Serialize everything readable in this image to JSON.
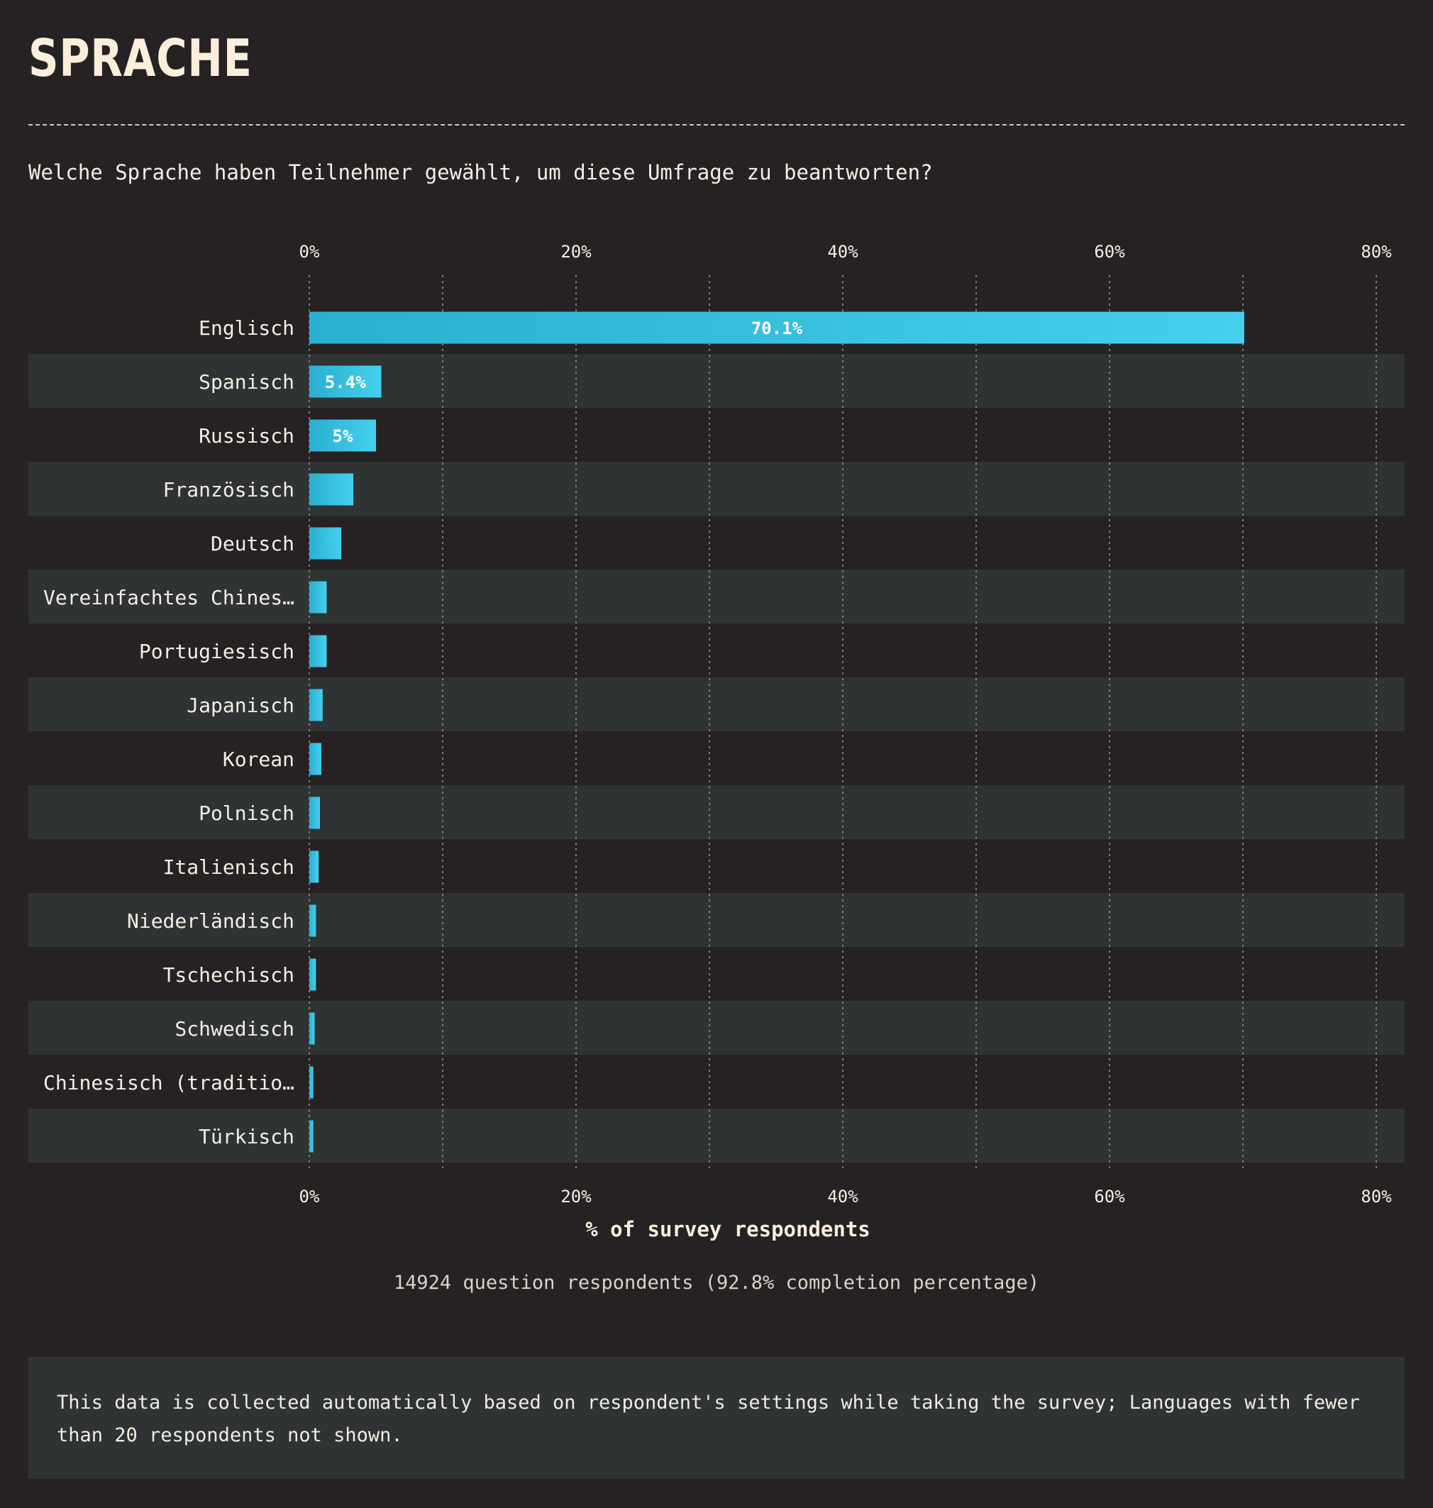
{
  "title": "SPRACHE",
  "question": "Welche Sprache haben Teilnehmer gewählt, um diese Umfrage zu beantworten?",
  "note": "This data is collected automatically based on respondent's settings while taking the survey; Languages with fewer than 20 respondents not shown.",
  "colors": {
    "bar_start": "#2bafcf",
    "bar_end": "#45d0ee",
    "band": "#2f3334",
    "grid": "#7d7a78",
    "label_text": "#f4efe4"
  },
  "chart_data": {
    "type": "bar",
    "orientation": "horizontal",
    "categories": [
      "Englisch",
      "Spanisch",
      "Russisch",
      "Französisch",
      "Deutsch",
      "Vereinfachtes Chines…",
      "Portugiesisch",
      "Japanisch",
      "Korean",
      "Polnisch",
      "Italienisch",
      "Niederländisch",
      "Tschechisch",
      "Schwedisch",
      "Chinesisch (traditio…",
      "Türkisch"
    ],
    "values": [
      70.1,
      5.4,
      5,
      3.3,
      2.4,
      1.3,
      1.3,
      1.0,
      0.9,
      0.8,
      0.7,
      0.5,
      0.5,
      0.4,
      0.3,
      0.3
    ],
    "data_labels": [
      "70.1%",
      "5.4%",
      "5%",
      "",
      "",
      "",
      "",
      "",
      "",
      "",
      "",
      "",
      "",
      "",
      "",
      ""
    ],
    "xlim": [
      0,
      82
    ],
    "ticks": [
      0,
      20,
      40,
      60,
      80
    ],
    "tick_labels": [
      "0%",
      "20%",
      "40%",
      "60%",
      "80%"
    ],
    "minor_gridlines": [
      10,
      30,
      50,
      70
    ],
    "xlabel": "% of survey respondents",
    "footer": "14924 question respondents (92.8% completion percentage)",
    "grid": true,
    "legend": "none"
  }
}
